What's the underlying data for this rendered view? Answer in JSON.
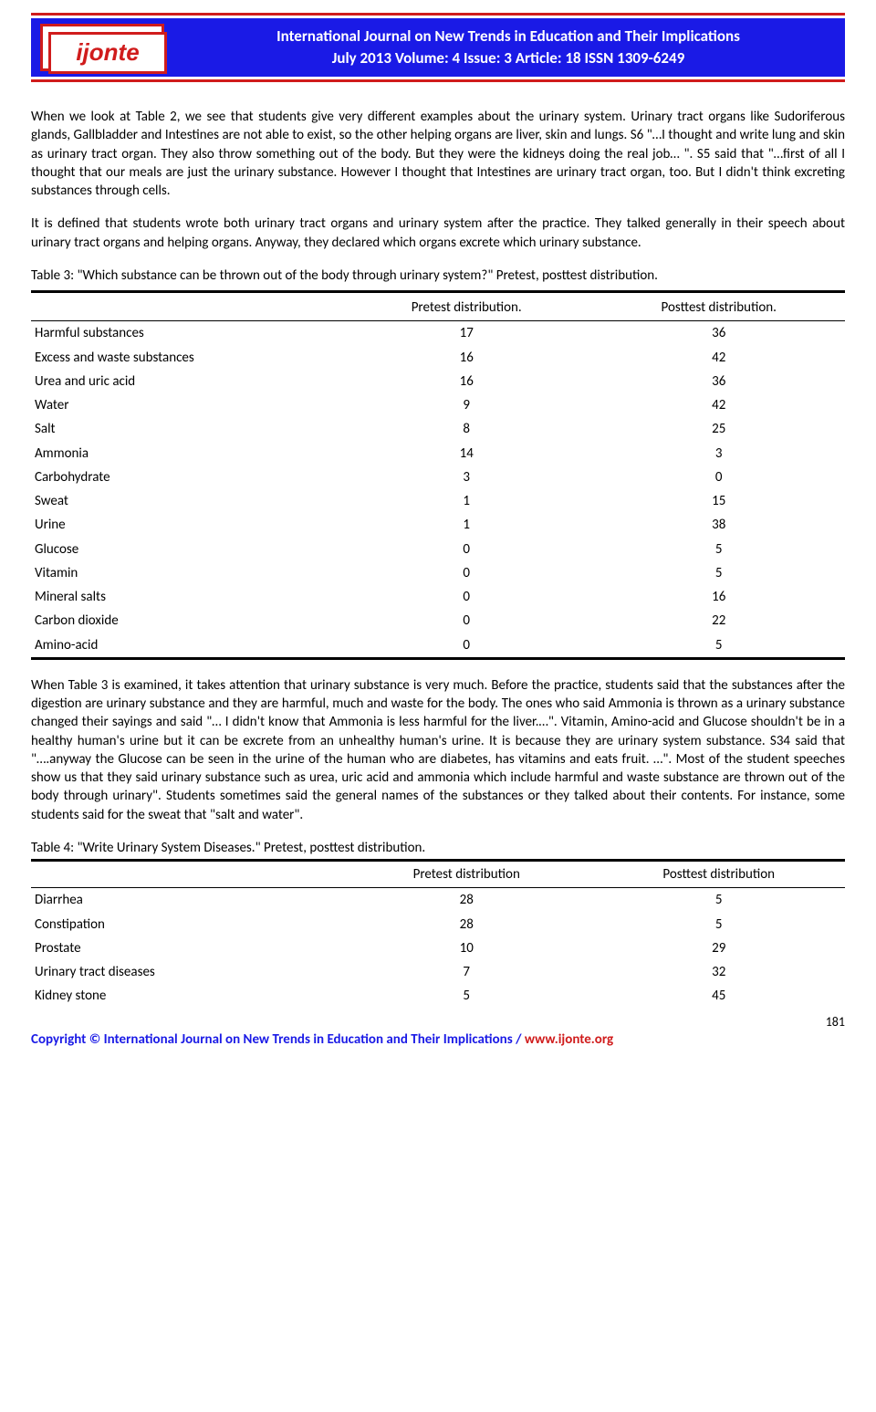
{
  "header": {
    "logo_text": "ijonte",
    "line1": "International  Journal on New Trends in Education and Their Implications",
    "line2": "July  2013 Volume: 4 Issue: 3  Article: 18  ISSN 1309-6249"
  },
  "paragraphs": {
    "p1": "When we look at Table 2, we see that students give very different examples about the urinary system. Urinary tract organs like Sudoriferous glands, Gallbladder and Intestines are not able to exist, so the other helping organs are liver, skin and lungs. S6 \"…I thought and write lung and skin as urinary tract organ. They also throw something out of the body. But they were the kidneys doing the real job… \". S5 said that \"…first of all I thought that our meals are just the urinary substance. However I thought that Intestines are urinary tract organ, too. But I didn't think excreting substances through cells.",
    "p2": " It is defined that students wrote both urinary tract organs and urinary system after the practice. They talked generally in their speech about urinary tract organs and helping organs. Anyway, they declared which organs excrete which urinary substance.",
    "p3": "Table 3: \"Which substance can be thrown out of the body through urinary system?\" Pretest, posttest distribution.",
    "p4": "When Table 3 is examined, it takes attention that urinary substance is very much. Before the practice, students said that the substances after the digestion are urinary substance and they are harmful, much and waste for the body. The ones who said Ammonia is thrown as a urinary substance changed their sayings and said \"… I didn't know that Ammonia is less harmful for the liver.…\". Vitamin, Amino-acid and Glucose shouldn't be in a healthy human's urine but it can be excrete from an unhealthy human's urine. It is because they are urinary system substance. S34 said that \"….anyway the Glucose can be seen in the urine of the human who are diabetes, has vitamins and eats fruit. …\". Most of the student speeches show us that they said urinary substance such as urea, uric acid and ammonia which include harmful and waste substance are thrown out of the body through urinary\". Students sometimes said the general names of the substances or they talked about their contents. For instance, some students said for the sweat that \"salt and water\".",
    "p5": "Table 4: \"Write Urinary System Diseases.\" Pretest, posttest distribution."
  },
  "table3": {
    "headers": {
      "c1": "",
      "c2": "Pretest distribution.",
      "c3": "Posttest distribution."
    },
    "rows": [
      {
        "label": "Harmful substances",
        "pre": "17",
        "post": "36"
      },
      {
        "label": "Excess and waste substances",
        "pre": "16",
        "post": "42"
      },
      {
        "label": "Urea and uric acid",
        "pre": "16",
        "post": "36"
      },
      {
        "label": "Water",
        "pre": "9",
        "post": "42"
      },
      {
        "label": "Salt",
        "pre": "8",
        "post": "25"
      },
      {
        "label": "Ammonia",
        "pre": "14",
        "post": "3"
      },
      {
        "label": "Carbohydrate",
        "pre": "3",
        "post": "0"
      },
      {
        "label": "Sweat",
        "pre": "1",
        "post": "15"
      },
      {
        "label": "Urine",
        "pre": "1",
        "post": "38"
      },
      {
        "label": "Glucose",
        "pre": "0",
        "post": "5"
      },
      {
        "label": "Vitamin",
        "pre": "0",
        "post": "5"
      },
      {
        "label": "Mineral salts",
        "pre": "0",
        "post": "16"
      },
      {
        "label": "Carbon dioxide",
        "pre": "0",
        "post": "22"
      },
      {
        "label": "Amino-acid",
        "pre": "0",
        "post": "5"
      }
    ]
  },
  "table4": {
    "headers": {
      "c1": "",
      "c2": "Pretest distribution",
      "c3": "Posttest distribution"
    },
    "rows": [
      {
        "label": "Diarrhea",
        "pre": "28",
        "post": "5"
      },
      {
        "label": "Constipation",
        "pre": "28",
        "post": "5"
      },
      {
        "label": "Prostate",
        "pre": "10",
        "post": "29"
      },
      {
        "label": "Urinary tract diseases",
        "pre": "7",
        "post": "32"
      },
      {
        "label": "Kidney stone",
        "pre": "5",
        "post": "45"
      }
    ]
  },
  "page_number": "181",
  "footer": {
    "left": "Copyright © International Journal on New Trends in Education and Their Implications / ",
    "url": "www.ijonte.org"
  }
}
